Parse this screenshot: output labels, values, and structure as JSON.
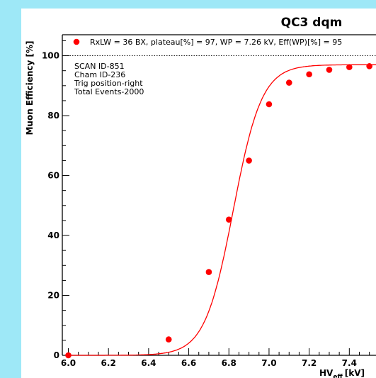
{
  "chart_data": {
    "type": "scatter",
    "title": "QC3 dqm",
    "xlabel_main": "HV",
    "xlabel_sub": "eff",
    "xlabel_unit": "[kV]",
    "ylabel": "Muon Efficiency [%]",
    "xlim": [
      5.97,
      7.6
    ],
    "ylim": [
      0,
      107
    ],
    "x_ticks": [
      6.0,
      6.2,
      6.4,
      6.6,
      6.8,
      7.0,
      7.2,
      7.4
    ],
    "x_tick_labels": [
      "6.0",
      "6.2",
      "6.4",
      "6.6",
      "6.8",
      "7.0",
      "7.2",
      "7.4"
    ],
    "y_ticks": [
      0,
      20,
      40,
      60,
      80,
      100
    ],
    "y_tick_labels": [
      "0",
      "20",
      "40",
      "60",
      "80",
      "100"
    ],
    "reference_line_y": 100,
    "series": [
      {
        "name": "RxLW = 36 BX, plateau[%] = 97, WP = 7.26 kV, Eff(WP)[%] = 95",
        "color": "#ff0000",
        "x": [
          6.0,
          6.5,
          6.7,
          6.8,
          6.9,
          7.0,
          7.1,
          7.2,
          7.3,
          7.4,
          7.5
        ],
        "y": [
          0,
          5.3,
          27.8,
          45.3,
          65.0,
          83.8,
          91.0,
          93.8,
          95.3,
          96.2,
          96.5
        ]
      }
    ],
    "fit": {
      "color": "#ff0000",
      "plateau": 97,
      "midpoint": 6.822,
      "slope": 14.1
    },
    "annotations": [
      "SCAN ID-851",
      "Cham ID-236",
      "Trig position-right",
      "Total Events-2000"
    ]
  }
}
